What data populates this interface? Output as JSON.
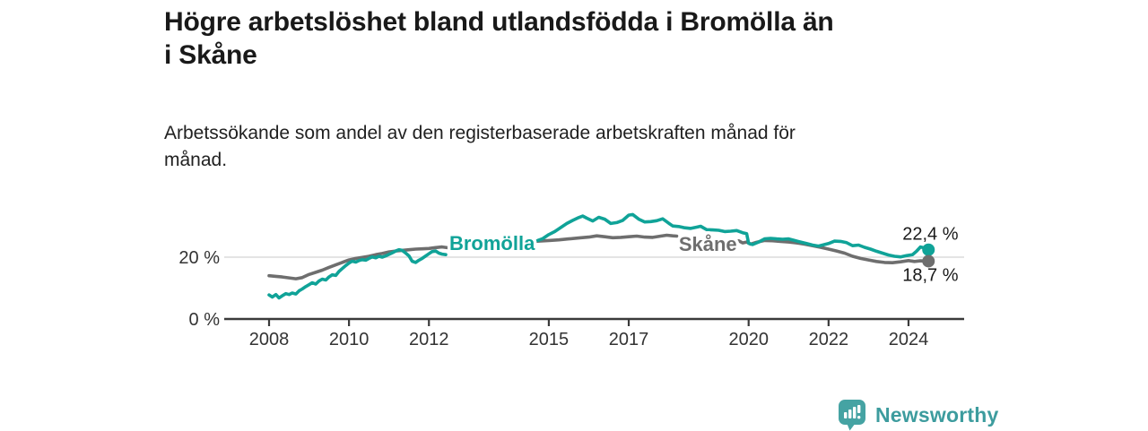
{
  "header": {
    "title": "Högre arbetslöshet bland utlandsfödda i Bromölla än i Skåne",
    "title_lines": [
      "Högre arbetslöshet bland utlandsfödda i Bromölla än",
      "i Skåne"
    ],
    "subtitle": "Arbetssökande som andel av den registerbaserade arbetskraften månad för månad.",
    "subtitle_lines": [
      "Arbetssökande som andel av den registerbaserade arbetskraften månad för",
      "månad."
    ]
  },
  "footer": {
    "brand": "Newsworthy",
    "brand_color": "#3D9C9E",
    "logo_icon": "bar-chart-speech-bubble-icon",
    "logo_color": "#45A3A3"
  },
  "chart_data": {
    "type": "line",
    "title": "Högre arbetslöshet bland utlandsfödda i Bromölla än i Skåne",
    "xlabel": "",
    "ylabel": "Arbetssökande som andel av den registerbaserade arbetskraften",
    "unit": "%",
    "grid": "y-only at 20 %",
    "legend_position": "inline-labels-on-lines",
    "x_range": [
      2008.0,
      2024.5
    ],
    "ylim": [
      0,
      36
    ],
    "x_ticks": [
      2008,
      2010,
      2012,
      2015,
      2017,
      2020,
      2022,
      2024
    ],
    "y_ticks": [
      {
        "value": 0,
        "label": "0 %"
      },
      {
        "value": 20,
        "label": "20 %"
      }
    ],
    "colors": {
      "bromolla": "#10A398",
      "skane": "#6E6E6E",
      "grid_line": "#DCDCDC",
      "axis": "#3A3A3A",
      "tick_label": "#333333",
      "end_label": "#1A1A1A"
    },
    "series": [
      {
        "name": "Bromölla",
        "color": "#10A398",
        "end_value": 22.4,
        "end_label": "22,4 %",
        "label_anchor": {
          "x": 2013.58,
          "y": 24.6
        },
        "segments": [
          [
            [
              2008.0,
              7.8
            ],
            [
              2008.08,
              7.1
            ],
            [
              2008.17,
              7.9
            ],
            [
              2008.25,
              6.8
            ],
            [
              2008.33,
              7.5
            ],
            [
              2008.42,
              8.2
            ],
            [
              2008.5,
              7.9
            ],
            [
              2008.58,
              8.4
            ],
            [
              2008.67,
              8.1
            ],
            [
              2008.75,
              9.1
            ],
            [
              2008.83,
              9.7
            ],
            [
              2008.92,
              10.5
            ],
            [
              2009.0,
              11.1
            ],
            [
              2009.08,
              11.7
            ],
            [
              2009.17,
              11.3
            ],
            [
              2009.25,
              12.3
            ],
            [
              2009.33,
              12.9
            ],
            [
              2009.42,
              12.6
            ],
            [
              2009.5,
              13.6
            ],
            [
              2009.58,
              14.3
            ],
            [
              2009.67,
              14.1
            ],
            [
              2009.75,
              15.4
            ],
            [
              2009.83,
              16.3
            ],
            [
              2009.92,
              17.3
            ],
            [
              2010.0,
              18.1
            ],
            [
              2010.08,
              18.7
            ],
            [
              2010.17,
              18.4
            ],
            [
              2010.25,
              18.9
            ],
            [
              2010.33,
              19.2
            ],
            [
              2010.42,
              19.0
            ],
            [
              2010.5,
              19.6
            ],
            [
              2010.58,
              20.1
            ],
            [
              2010.67,
              19.8
            ],
            [
              2010.75,
              20.3
            ],
            [
              2010.83,
              20.0
            ],
            [
              2010.92,
              20.4
            ],
            [
              2011.0,
              20.9
            ],
            [
              2011.08,
              21.4
            ],
            [
              2011.17,
              22.0
            ],
            [
              2011.25,
              22.4
            ],
            [
              2011.33,
              22.2
            ],
            [
              2011.42,
              21.3
            ],
            [
              2011.5,
              20.4
            ],
            [
              2011.58,
              18.7
            ],
            [
              2011.67,
              18.3
            ],
            [
              2011.75,
              19.0
            ],
            [
              2011.83,
              19.6
            ],
            [
              2011.92,
              20.4
            ],
            [
              2012.0,
              21.1
            ],
            [
              2012.08,
              21.8
            ],
            [
              2012.17,
              22.0
            ],
            [
              2012.25,
              21.3
            ],
            [
              2012.33,
              21.0
            ],
            [
              2012.42,
              20.8
            ]
          ],
          [
            [
              2014.72,
              25.4
            ],
            [
              2014.85,
              26.0
            ],
            [
              2015.0,
              27.3
            ],
            [
              2015.15,
              28.3
            ],
            [
              2015.3,
              29.6
            ],
            [
              2015.45,
              30.9
            ],
            [
              2015.6,
              31.9
            ],
            [
              2015.75,
              32.8
            ],
            [
              2015.85,
              33.3
            ],
            [
              2015.95,
              32.6
            ],
            [
              2016.1,
              31.7
            ],
            [
              2016.25,
              32.9
            ],
            [
              2016.4,
              32.3
            ],
            [
              2016.55,
              30.9
            ],
            [
              2016.7,
              31.2
            ],
            [
              2016.85,
              31.9
            ],
            [
              2017.0,
              33.6
            ],
            [
              2017.1,
              33.8
            ],
            [
              2017.25,
              32.3
            ],
            [
              2017.4,
              31.4
            ],
            [
              2017.55,
              31.5
            ],
            [
              2017.7,
              31.8
            ],
            [
              2017.85,
              32.4
            ],
            [
              2018.0,
              31.0
            ],
            [
              2018.1,
              30.1
            ],
            [
              2018.25,
              29.9
            ],
            [
              2018.4,
              29.5
            ],
            [
              2018.55,
              29.3
            ],
            [
              2018.7,
              29.7
            ],
            [
              2018.8,
              30.0
            ],
            [
              2018.95,
              28.9
            ],
            [
              2019.1,
              28.8
            ],
            [
              2019.25,
              28.7
            ],
            [
              2019.4,
              28.3
            ],
            [
              2019.55,
              28.4
            ],
            [
              2019.7,
              28.6
            ],
            [
              2019.85,
              27.9
            ],
            [
              2019.95,
              27.6
            ],
            [
              2020.0,
              24.5
            ],
            [
              2020.1,
              24.1
            ],
            [
              2020.25,
              24.9
            ],
            [
              2020.4,
              25.9
            ],
            [
              2020.55,
              26.1
            ],
            [
              2020.7,
              25.9
            ],
            [
              2020.85,
              25.8
            ],
            [
              2021.0,
              25.9
            ],
            [
              2021.15,
              25.4
            ],
            [
              2021.3,
              24.9
            ],
            [
              2021.45,
              24.4
            ],
            [
              2021.6,
              23.9
            ],
            [
              2021.75,
              23.6
            ],
            [
              2021.9,
              24.1
            ],
            [
              2022.0,
              24.4
            ],
            [
              2022.15,
              25.2
            ],
            [
              2022.3,
              25.1
            ],
            [
              2022.45,
              24.7
            ],
            [
              2022.6,
              23.7
            ],
            [
              2022.75,
              23.9
            ],
            [
              2022.9,
              23.2
            ],
            [
              2023.05,
              22.6
            ],
            [
              2023.2,
              21.9
            ],
            [
              2023.35,
              21.3
            ],
            [
              2023.5,
              20.7
            ],
            [
              2023.65,
              20.3
            ],
            [
              2023.8,
              20.1
            ],
            [
              2023.95,
              20.5
            ],
            [
              2024.1,
              20.8
            ],
            [
              2024.2,
              21.9
            ],
            [
              2024.3,
              23.3
            ],
            [
              2024.4,
              23.0
            ],
            [
              2024.5,
              22.4
            ]
          ]
        ]
      },
      {
        "name": "Skåne",
        "color": "#6E6E6E",
        "end_value": 18.7,
        "end_label": "18,7 %",
        "label_anchor": {
          "x": 2018.98,
          "y": 24.3
        },
        "segments": [
          [
            [
              2008.0,
              14.0
            ],
            [
              2008.17,
              13.8
            ],
            [
              2008.33,
              13.6
            ],
            [
              2008.5,
              13.3
            ],
            [
              2008.67,
              13.0
            ],
            [
              2008.83,
              13.4
            ],
            [
              2009.0,
              14.4
            ],
            [
              2009.17,
              15.1
            ],
            [
              2009.33,
              15.8
            ],
            [
              2009.5,
              16.7
            ],
            [
              2009.67,
              17.5
            ],
            [
              2009.83,
              18.3
            ],
            [
              2010.0,
              19.1
            ],
            [
              2010.17,
              19.6
            ],
            [
              2010.33,
              19.9
            ],
            [
              2010.5,
              20.3
            ],
            [
              2010.67,
              20.8
            ],
            [
              2010.83,
              21.2
            ],
            [
              2011.0,
              21.7
            ],
            [
              2011.17,
              22.0
            ],
            [
              2011.33,
              22.2
            ],
            [
              2011.5,
              22.4
            ],
            [
              2011.67,
              22.6
            ],
            [
              2011.83,
              22.7
            ],
            [
              2012.0,
              22.8
            ],
            [
              2012.17,
              23.1
            ],
            [
              2012.33,
              23.3
            ],
            [
              2012.5,
              23.0
            ],
            [
              2012.67,
              22.8
            ],
            [
              2012.83,
              23.0
            ],
            [
              2013.0,
              23.2
            ],
            [
              2013.25,
              23.5
            ],
            [
              2013.5,
              23.8
            ],
            [
              2013.75,
              24.0
            ],
            [
              2014.0,
              24.3
            ],
            [
              2014.25,
              24.6
            ],
            [
              2014.5,
              24.9
            ],
            [
              2014.75,
              25.2
            ],
            [
              2015.0,
              25.4
            ],
            [
              2015.25,
              25.6
            ],
            [
              2015.5,
              25.9
            ],
            [
              2015.75,
              26.2
            ],
            [
              2016.0,
              26.5
            ],
            [
              2016.2,
              26.9
            ],
            [
              2016.4,
              26.6
            ],
            [
              2016.6,
              26.3
            ],
            [
              2016.8,
              26.4
            ],
            [
              2017.0,
              26.6
            ],
            [
              2017.2,
              26.8
            ],
            [
              2017.4,
              26.5
            ],
            [
              2017.6,
              26.4
            ],
            [
              2017.8,
              26.8
            ],
            [
              2017.95,
              27.1
            ],
            [
              2018.1,
              26.9
            ],
            [
              2018.2,
              26.8
            ]
          ],
          [
            [
              2019.75,
              25.3
            ],
            [
              2019.85,
              24.6
            ],
            [
              2019.95,
              24.9
            ],
            [
              2020.05,
              24.2
            ],
            [
              2020.2,
              24.8
            ],
            [
              2020.4,
              25.4
            ],
            [
              2020.6,
              25.3
            ],
            [
              2020.8,
              25.1
            ],
            [
              2021.0,
              24.9
            ],
            [
              2021.2,
              24.6
            ],
            [
              2021.4,
              24.2
            ],
            [
              2021.6,
              23.7
            ],
            [
              2021.8,
              23.2
            ],
            [
              2022.0,
              22.6
            ],
            [
              2022.2,
              22.0
            ],
            [
              2022.4,
              21.3
            ],
            [
              2022.6,
              20.3
            ],
            [
              2022.8,
              19.6
            ],
            [
              2023.0,
              19.1
            ],
            [
              2023.2,
              18.6
            ],
            [
              2023.4,
              18.3
            ],
            [
              2023.6,
              18.2
            ],
            [
              2023.8,
              18.5
            ],
            [
              2024.0,
              18.9
            ],
            [
              2024.15,
              18.6
            ],
            [
              2024.3,
              18.8
            ],
            [
              2024.5,
              18.7
            ]
          ]
        ]
      }
    ]
  }
}
